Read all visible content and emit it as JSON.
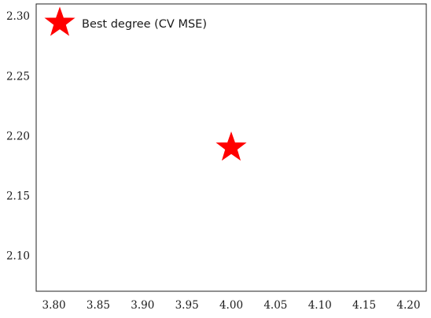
{
  "chart_data": {
    "type": "scatter",
    "title": "",
    "xlabel": "",
    "ylabel": "",
    "xlim": [
      3.78,
      4.22
    ],
    "ylim": [
      2.07,
      2.31
    ],
    "xticks": [
      3.8,
      3.85,
      3.9,
      3.95,
      4.0,
      4.05,
      4.1,
      4.15,
      4.2
    ],
    "xtick_labels": [
      "3.80",
      "3.85",
      "3.90",
      "3.95",
      "4.00",
      "4.05",
      "4.10",
      "4.15",
      "4.20"
    ],
    "yticks": [
      2.1,
      2.15,
      2.2,
      2.25,
      2.3
    ],
    "ytick_labels": [
      "2.10",
      "2.15",
      "2.20",
      "2.25",
      "2.30"
    ],
    "grid": false,
    "legend_position": "top-left",
    "series": [
      {
        "name": "Best degree (CV MSE)",
        "marker": "star",
        "color": "#ff0000",
        "points": [
          {
            "x": 4.0,
            "y": 2.19
          }
        ]
      }
    ]
  }
}
